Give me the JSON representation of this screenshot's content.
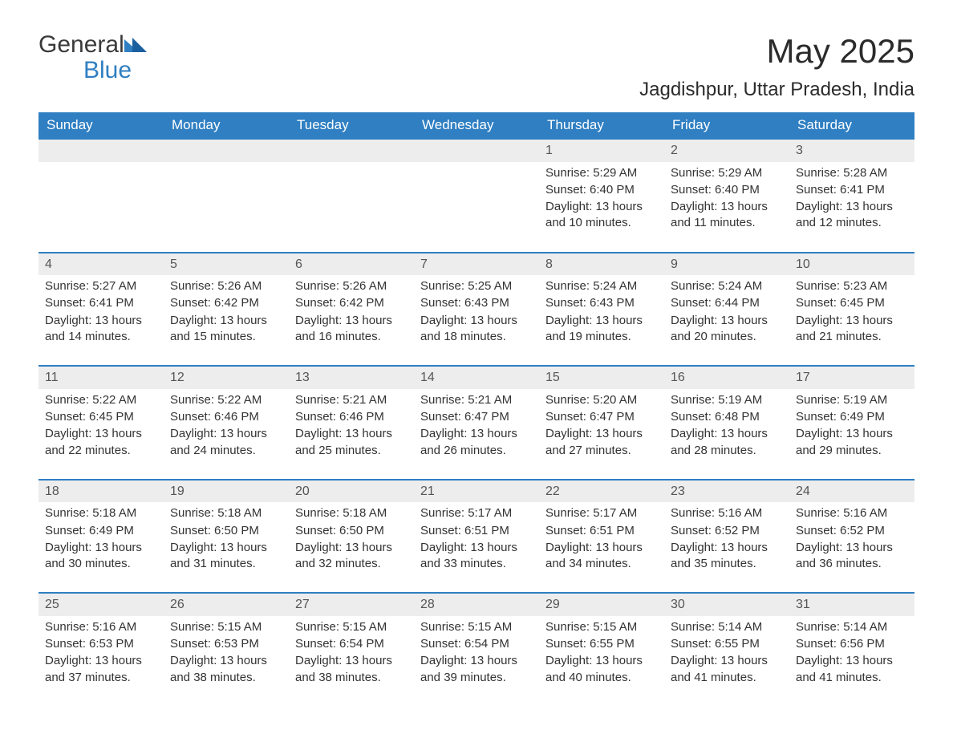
{
  "brand": {
    "part1": "General",
    "part2": "Blue"
  },
  "title": "May 2025",
  "location": "Jagdishpur, Uttar Pradesh, India",
  "colors": {
    "header_bg": "#2f7fc2",
    "header_text": "#ffffff",
    "daynum_bg": "#ededed",
    "week_border": "#2f7fc2",
    "body_text": "#333333",
    "logo_blue": "#2f7fc2",
    "logo_dark": "#3a3a3a",
    "page_bg": "#ffffff"
  },
  "typography": {
    "title_fontsize_pt": 32,
    "location_fontsize_pt": 18,
    "header_fontsize_pt": 13,
    "body_fontsize_pt": 11,
    "font_family": "Arial"
  },
  "layout": {
    "columns": 7,
    "rows": 5,
    "aspect_w": 1188,
    "aspect_h": 918
  },
  "weekdays": [
    "Sunday",
    "Monday",
    "Tuesday",
    "Wednesday",
    "Thursday",
    "Friday",
    "Saturday"
  ],
  "weeks": [
    [
      {
        "empty": true
      },
      {
        "empty": true
      },
      {
        "empty": true
      },
      {
        "empty": true
      },
      {
        "d": "1",
        "sunrise": "Sunrise: 5:29 AM",
        "sunset": "Sunset: 6:40 PM",
        "daylight": "Daylight: 13 hours and 10 minutes."
      },
      {
        "d": "2",
        "sunrise": "Sunrise: 5:29 AM",
        "sunset": "Sunset: 6:40 PM",
        "daylight": "Daylight: 13 hours and 11 minutes."
      },
      {
        "d": "3",
        "sunrise": "Sunrise: 5:28 AM",
        "sunset": "Sunset: 6:41 PM",
        "daylight": "Daylight: 13 hours and 12 minutes."
      }
    ],
    [
      {
        "d": "4",
        "sunrise": "Sunrise: 5:27 AM",
        "sunset": "Sunset: 6:41 PM",
        "daylight": "Daylight: 13 hours and 14 minutes."
      },
      {
        "d": "5",
        "sunrise": "Sunrise: 5:26 AM",
        "sunset": "Sunset: 6:42 PM",
        "daylight": "Daylight: 13 hours and 15 minutes."
      },
      {
        "d": "6",
        "sunrise": "Sunrise: 5:26 AM",
        "sunset": "Sunset: 6:42 PM",
        "daylight": "Daylight: 13 hours and 16 minutes."
      },
      {
        "d": "7",
        "sunrise": "Sunrise: 5:25 AM",
        "sunset": "Sunset: 6:43 PM",
        "daylight": "Daylight: 13 hours and 18 minutes."
      },
      {
        "d": "8",
        "sunrise": "Sunrise: 5:24 AM",
        "sunset": "Sunset: 6:43 PM",
        "daylight": "Daylight: 13 hours and 19 minutes."
      },
      {
        "d": "9",
        "sunrise": "Sunrise: 5:24 AM",
        "sunset": "Sunset: 6:44 PM",
        "daylight": "Daylight: 13 hours and 20 minutes."
      },
      {
        "d": "10",
        "sunrise": "Sunrise: 5:23 AM",
        "sunset": "Sunset: 6:45 PM",
        "daylight": "Daylight: 13 hours and 21 minutes."
      }
    ],
    [
      {
        "d": "11",
        "sunrise": "Sunrise: 5:22 AM",
        "sunset": "Sunset: 6:45 PM",
        "daylight": "Daylight: 13 hours and 22 minutes."
      },
      {
        "d": "12",
        "sunrise": "Sunrise: 5:22 AM",
        "sunset": "Sunset: 6:46 PM",
        "daylight": "Daylight: 13 hours and 24 minutes."
      },
      {
        "d": "13",
        "sunrise": "Sunrise: 5:21 AM",
        "sunset": "Sunset: 6:46 PM",
        "daylight": "Daylight: 13 hours and 25 minutes."
      },
      {
        "d": "14",
        "sunrise": "Sunrise: 5:21 AM",
        "sunset": "Sunset: 6:47 PM",
        "daylight": "Daylight: 13 hours and 26 minutes."
      },
      {
        "d": "15",
        "sunrise": "Sunrise: 5:20 AM",
        "sunset": "Sunset: 6:47 PM",
        "daylight": "Daylight: 13 hours and 27 minutes."
      },
      {
        "d": "16",
        "sunrise": "Sunrise: 5:19 AM",
        "sunset": "Sunset: 6:48 PM",
        "daylight": "Daylight: 13 hours and 28 minutes."
      },
      {
        "d": "17",
        "sunrise": "Sunrise: 5:19 AM",
        "sunset": "Sunset: 6:49 PM",
        "daylight": "Daylight: 13 hours and 29 minutes."
      }
    ],
    [
      {
        "d": "18",
        "sunrise": "Sunrise: 5:18 AM",
        "sunset": "Sunset: 6:49 PM",
        "daylight": "Daylight: 13 hours and 30 minutes."
      },
      {
        "d": "19",
        "sunrise": "Sunrise: 5:18 AM",
        "sunset": "Sunset: 6:50 PM",
        "daylight": "Daylight: 13 hours and 31 minutes."
      },
      {
        "d": "20",
        "sunrise": "Sunrise: 5:18 AM",
        "sunset": "Sunset: 6:50 PM",
        "daylight": "Daylight: 13 hours and 32 minutes."
      },
      {
        "d": "21",
        "sunrise": "Sunrise: 5:17 AM",
        "sunset": "Sunset: 6:51 PM",
        "daylight": "Daylight: 13 hours and 33 minutes."
      },
      {
        "d": "22",
        "sunrise": "Sunrise: 5:17 AM",
        "sunset": "Sunset: 6:51 PM",
        "daylight": "Daylight: 13 hours and 34 minutes."
      },
      {
        "d": "23",
        "sunrise": "Sunrise: 5:16 AM",
        "sunset": "Sunset: 6:52 PM",
        "daylight": "Daylight: 13 hours and 35 minutes."
      },
      {
        "d": "24",
        "sunrise": "Sunrise: 5:16 AM",
        "sunset": "Sunset: 6:52 PM",
        "daylight": "Daylight: 13 hours and 36 minutes."
      }
    ],
    [
      {
        "d": "25",
        "sunrise": "Sunrise: 5:16 AM",
        "sunset": "Sunset: 6:53 PM",
        "daylight": "Daylight: 13 hours and 37 minutes."
      },
      {
        "d": "26",
        "sunrise": "Sunrise: 5:15 AM",
        "sunset": "Sunset: 6:53 PM",
        "daylight": "Daylight: 13 hours and 38 minutes."
      },
      {
        "d": "27",
        "sunrise": "Sunrise: 5:15 AM",
        "sunset": "Sunset: 6:54 PM",
        "daylight": "Daylight: 13 hours and 38 minutes."
      },
      {
        "d": "28",
        "sunrise": "Sunrise: 5:15 AM",
        "sunset": "Sunset: 6:54 PM",
        "daylight": "Daylight: 13 hours and 39 minutes."
      },
      {
        "d": "29",
        "sunrise": "Sunrise: 5:15 AM",
        "sunset": "Sunset: 6:55 PM",
        "daylight": "Daylight: 13 hours and 40 minutes."
      },
      {
        "d": "30",
        "sunrise": "Sunrise: 5:14 AM",
        "sunset": "Sunset: 6:55 PM",
        "daylight": "Daylight: 13 hours and 41 minutes."
      },
      {
        "d": "31",
        "sunrise": "Sunrise: 5:14 AM",
        "sunset": "Sunset: 6:56 PM",
        "daylight": "Daylight: 13 hours and 41 minutes."
      }
    ]
  ]
}
